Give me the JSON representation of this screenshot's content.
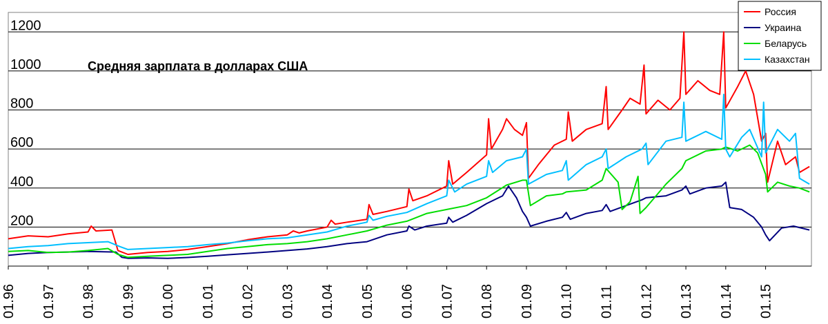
{
  "chart_data": {
    "type": "line",
    "title": "Средняя зарплата в долларах США",
    "xlabel": "",
    "ylabel": "",
    "ylim": [
      0,
      1300
    ],
    "yticks": [
      200,
      400,
      600,
      800,
      1000,
      1200
    ],
    "x_ticks": [
      "01.96",
      "01.97",
      "01.98",
      "01.99",
      "01.00",
      "01.01",
      "01.02",
      "01.03",
      "01.04",
      "01.05",
      "01.06",
      "01.07",
      "01.08",
      "01.09",
      "01.10",
      "01.11",
      "01.12",
      "01.13",
      "01.14",
      "01.15"
    ],
    "grid": "horizontal",
    "legend_position": "top-right",
    "series": [
      {
        "name": "Россия",
        "color": "#ff0000",
        "points": [
          [
            1996.0,
            140
          ],
          [
            1996.5,
            155
          ],
          [
            1997.0,
            150
          ],
          [
            1997.5,
            165
          ],
          [
            1998.0,
            175
          ],
          [
            1998.08,
            205
          ],
          [
            1998.2,
            180
          ],
          [
            1998.6,
            185
          ],
          [
            1998.75,
            80
          ],
          [
            1999.0,
            60
          ],
          [
            1999.5,
            70
          ],
          [
            2000.0,
            75
          ],
          [
            2000.5,
            85
          ],
          [
            2001.0,
            100
          ],
          [
            2001.5,
            115
          ],
          [
            2002.0,
            135
          ],
          [
            2002.5,
            150
          ],
          [
            2003.0,
            160
          ],
          [
            2003.15,
            180
          ],
          [
            2003.3,
            170
          ],
          [
            2003.5,
            180
          ],
          [
            2004.0,
            200
          ],
          [
            2004.1,
            235
          ],
          [
            2004.2,
            215
          ],
          [
            2004.5,
            225
          ],
          [
            2005.0,
            240
          ],
          [
            2005.05,
            315
          ],
          [
            2005.15,
            265
          ],
          [
            2005.5,
            280
          ],
          [
            2006.0,
            305
          ],
          [
            2006.05,
            395
          ],
          [
            2006.15,
            335
          ],
          [
            2006.5,
            360
          ],
          [
            2007.0,
            410
          ],
          [
            2007.05,
            540
          ],
          [
            2007.15,
            420
          ],
          [
            2007.5,
            480
          ],
          [
            2008.0,
            570
          ],
          [
            2008.05,
            755
          ],
          [
            2008.12,
            600
          ],
          [
            2008.4,
            700
          ],
          [
            2008.5,
            755
          ],
          [
            2008.7,
            700
          ],
          [
            2008.9,
            670
          ],
          [
            2009.0,
            735
          ],
          [
            2009.05,
            450
          ],
          [
            2009.3,
            520
          ],
          [
            2009.7,
            620
          ],
          [
            2010.0,
            650
          ],
          [
            2010.05,
            790
          ],
          [
            2010.15,
            640
          ],
          [
            2010.5,
            700
          ],
          [
            2010.9,
            730
          ],
          [
            2011.0,
            920
          ],
          [
            2011.05,
            700
          ],
          [
            2011.4,
            800
          ],
          [
            2011.6,
            860
          ],
          [
            2011.85,
            830
          ],
          [
            2011.95,
            1030
          ],
          [
            2012.0,
            780
          ],
          [
            2012.3,
            850
          ],
          [
            2012.6,
            800
          ],
          [
            2012.85,
            860
          ],
          [
            2012.95,
            1200
          ],
          [
            2013.0,
            880
          ],
          [
            2013.3,
            950
          ],
          [
            2013.6,
            900
          ],
          [
            2013.85,
            880
          ],
          [
            2013.95,
            1200
          ],
          [
            2014.0,
            810
          ],
          [
            2014.3,
            920
          ],
          [
            2014.5,
            1000
          ],
          [
            2014.7,
            880
          ],
          [
            2014.9,
            640
          ],
          [
            2015.0,
            680
          ],
          [
            2015.05,
            430
          ],
          [
            2015.3,
            640
          ],
          [
            2015.5,
            520
          ],
          [
            2015.75,
            560
          ],
          [
            2015.85,
            480
          ],
          [
            2016.1,
            510
          ]
        ]
      },
      {
        "name": "Украина",
        "color": "#000080",
        "points": [
          [
            1996.0,
            55
          ],
          [
            1996.5,
            65
          ],
          [
            1997.0,
            70
          ],
          [
            1997.5,
            72
          ],
          [
            1998.0,
            75
          ],
          [
            1998.7,
            72
          ],
          [
            1998.85,
            45
          ],
          [
            1999.0,
            40
          ],
          [
            1999.5,
            42
          ],
          [
            2000.0,
            40
          ],
          [
            2000.5,
            44
          ],
          [
            2001.0,
            50
          ],
          [
            2001.5,
            58
          ],
          [
            2002.0,
            65
          ],
          [
            2002.5,
            72
          ],
          [
            2003.0,
            80
          ],
          [
            2003.5,
            88
          ],
          [
            2004.0,
            100
          ],
          [
            2004.5,
            115
          ],
          [
            2005.0,
            125
          ],
          [
            2005.5,
            160
          ],
          [
            2006.0,
            180
          ],
          [
            2006.05,
            205
          ],
          [
            2006.2,
            185
          ],
          [
            2006.5,
            205
          ],
          [
            2007.0,
            220
          ],
          [
            2007.05,
            250
          ],
          [
            2007.15,
            225
          ],
          [
            2007.5,
            260
          ],
          [
            2008.0,
            320
          ],
          [
            2008.4,
            360
          ],
          [
            2008.55,
            410
          ],
          [
            2008.75,
            350
          ],
          [
            2008.9,
            280
          ],
          [
            2009.0,
            250
          ],
          [
            2009.1,
            205
          ],
          [
            2009.5,
            230
          ],
          [
            2009.9,
            250
          ],
          [
            2010.0,
            275
          ],
          [
            2010.1,
            240
          ],
          [
            2010.5,
            270
          ],
          [
            2010.9,
            285
          ],
          [
            2011.0,
            315
          ],
          [
            2011.1,
            280
          ],
          [
            2011.5,
            310
          ],
          [
            2011.9,
            340
          ],
          [
            2012.0,
            350
          ],
          [
            2012.5,
            360
          ],
          [
            2012.9,
            390
          ],
          [
            2013.0,
            410
          ],
          [
            2013.1,
            370
          ],
          [
            2013.5,
            400
          ],
          [
            2013.9,
            410
          ],
          [
            2014.0,
            430
          ],
          [
            2014.1,
            300
          ],
          [
            2014.4,
            290
          ],
          [
            2014.7,
            250
          ],
          [
            2014.9,
            200
          ],
          [
            2015.0,
            160
          ],
          [
            2015.1,
            130
          ],
          [
            2015.4,
            195
          ],
          [
            2015.7,
            205
          ],
          [
            2016.1,
            185
          ]
        ]
      },
      {
        "name": "Беларусь",
        "color": "#00dd00",
        "points": [
          [
            1996.0,
            75
          ],
          [
            1996.5,
            80
          ],
          [
            1997.0,
            70
          ],
          [
            1997.5,
            72
          ],
          [
            1998.0,
            80
          ],
          [
            1998.5,
            90
          ],
          [
            1998.75,
            60
          ],
          [
            1999.0,
            45
          ],
          [
            1999.5,
            50
          ],
          [
            2000.0,
            55
          ],
          [
            2000.5,
            60
          ],
          [
            2001.0,
            75
          ],
          [
            2001.5,
            90
          ],
          [
            2002.0,
            100
          ],
          [
            2002.5,
            110
          ],
          [
            2003.0,
            115
          ],
          [
            2003.5,
            125
          ],
          [
            2004.0,
            140
          ],
          [
            2004.5,
            160
          ],
          [
            2005.0,
            180
          ],
          [
            2005.5,
            210
          ],
          [
            2006.0,
            230
          ],
          [
            2006.5,
            270
          ],
          [
            2007.0,
            290
          ],
          [
            2007.5,
            310
          ],
          [
            2008.0,
            350
          ],
          [
            2008.5,
            415
          ],
          [
            2008.9,
            440
          ],
          [
            2009.0,
            440
          ],
          [
            2009.1,
            310
          ],
          [
            2009.5,
            360
          ],
          [
            2009.9,
            370
          ],
          [
            2010.0,
            380
          ],
          [
            2010.5,
            390
          ],
          [
            2010.9,
            440
          ],
          [
            2011.0,
            500
          ],
          [
            2011.3,
            430
          ],
          [
            2011.4,
            290
          ],
          [
            2011.6,
            330
          ],
          [
            2011.8,
            460
          ],
          [
            2011.85,
            270
          ],
          [
            2012.0,
            300
          ],
          [
            2012.5,
            420
          ],
          [
            2012.9,
            500
          ],
          [
            2013.0,
            540
          ],
          [
            2013.5,
            590
          ],
          [
            2013.9,
            600
          ],
          [
            2014.0,
            610
          ],
          [
            2014.3,
            590
          ],
          [
            2014.6,
            620
          ],
          [
            2014.8,
            580
          ],
          [
            2015.0,
            470
          ],
          [
            2015.05,
            380
          ],
          [
            2015.3,
            430
          ],
          [
            2015.6,
            410
          ],
          [
            2015.85,
            400
          ],
          [
            2016.1,
            380
          ]
        ]
      },
      {
        "name": "Казахстан",
        "color": "#00bfff",
        "points": [
          [
            1996.0,
            90
          ],
          [
            1996.5,
            100
          ],
          [
            1997.0,
            105
          ],
          [
            1997.5,
            115
          ],
          [
            1998.0,
            120
          ],
          [
            1998.5,
            125
          ],
          [
            1998.8,
            100
          ],
          [
            1999.0,
            85
          ],
          [
            1999.5,
            90
          ],
          [
            2000.0,
            95
          ],
          [
            2000.5,
            100
          ],
          [
            2001.0,
            110
          ],
          [
            2001.5,
            118
          ],
          [
            2002.0,
            130
          ],
          [
            2002.5,
            140
          ],
          [
            2003.0,
            145
          ],
          [
            2003.5,
            160
          ],
          [
            2004.0,
            175
          ],
          [
            2004.5,
            205
          ],
          [
            2005.0,
            225
          ],
          [
            2005.05,
            260
          ],
          [
            2005.15,
            235
          ],
          [
            2005.5,
            255
          ],
          [
            2006.0,
            275
          ],
          [
            2006.5,
            320
          ],
          [
            2007.0,
            360
          ],
          [
            2007.05,
            440
          ],
          [
            2007.2,
            380
          ],
          [
            2007.5,
            420
          ],
          [
            2008.0,
            460
          ],
          [
            2008.05,
            540
          ],
          [
            2008.15,
            480
          ],
          [
            2008.5,
            540
          ],
          [
            2008.9,
            560
          ],
          [
            2009.0,
            600
          ],
          [
            2009.05,
            420
          ],
          [
            2009.5,
            470
          ],
          [
            2009.9,
            490
          ],
          [
            2010.0,
            540
          ],
          [
            2010.05,
            440
          ],
          [
            2010.5,
            520
          ],
          [
            2010.9,
            560
          ],
          [
            2011.0,
            600
          ],
          [
            2011.05,
            500
          ],
          [
            2011.5,
            560
          ],
          [
            2011.9,
            600
          ],
          [
            2012.0,
            630
          ],
          [
            2012.05,
            520
          ],
          [
            2012.5,
            640
          ],
          [
            2012.9,
            660
          ],
          [
            2012.95,
            840
          ],
          [
            2013.0,
            640
          ],
          [
            2013.5,
            690
          ],
          [
            2013.9,
            650
          ],
          [
            2013.95,
            880
          ],
          [
            2014.0,
            600
          ],
          [
            2014.1,
            560
          ],
          [
            2014.4,
            660
          ],
          [
            2014.6,
            700
          ],
          [
            2014.9,
            560
          ],
          [
            2014.95,
            840
          ],
          [
            2015.0,
            580
          ],
          [
            2015.3,
            700
          ],
          [
            2015.6,
            640
          ],
          [
            2015.75,
            680
          ],
          [
            2015.85,
            450
          ],
          [
            2016.1,
            420
          ]
        ]
      }
    ]
  }
}
